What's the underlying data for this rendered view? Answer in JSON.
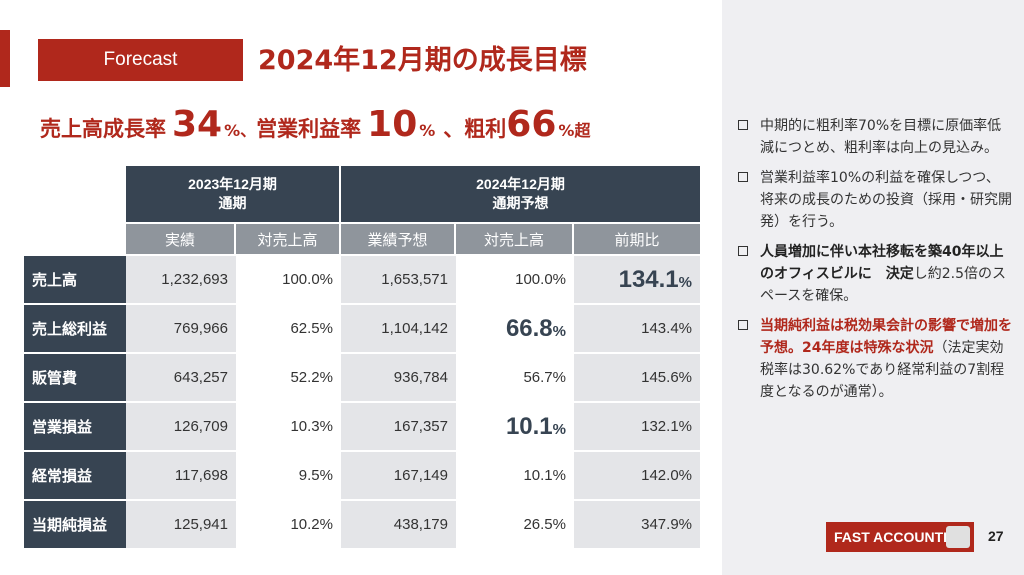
{
  "badge": "Forecast",
  "title": "2024年12月期の成長目標",
  "kpi": {
    "label1": "売上高成長率",
    "value1": "34",
    "unit1": "%、",
    "label2": "営業利益率",
    "value2": "10",
    "unit2": "%",
    "sep": "、",
    "label3": "粗利",
    "value3": "66",
    "unit3": "%超"
  },
  "table": {
    "period1": [
      "2023年12月期",
      "通期"
    ],
    "period2": [
      "2024年12月期",
      "通期予想"
    ],
    "subheaders": [
      "実績",
      "対売上高",
      "業績予想",
      "対売上高",
      "前期比"
    ],
    "rows": [
      {
        "label": "売上高",
        "cells": [
          "1,232,693",
          "100.0%",
          "1,653,571",
          "100.0%",
          "134.1"
        ]
      },
      {
        "label": "売上総利益",
        "cells": [
          "769,966",
          "62.5%",
          "1,104,142",
          "66.8",
          "143.4%"
        ]
      },
      {
        "label": "販管費",
        "cells": [
          "643,257",
          "52.2%",
          "936,784",
          "56.7%",
          "145.6%"
        ]
      },
      {
        "label": "営業損益",
        "cells": [
          "126,709",
          "10.3%",
          "167,357",
          "10.1",
          "132.1%"
        ]
      },
      {
        "label": "経常損益",
        "cells": [
          "117,698",
          "9.5%",
          "167,149",
          "10.1%",
          "142.0%"
        ]
      },
      {
        "label": "当期純損益",
        "cells": [
          "125,941",
          "10.2%",
          "438,179",
          "26.5%",
          "347.9%"
        ]
      }
    ],
    "pct_suffix": "%"
  },
  "bullets": {
    "b1": "中期的に粗利率70%を目標に原価率低減につとめ、粗利率は向上の見込み。",
    "b2": "営業利益率10%の利益を確保しつつ、将来の成長のための投資（採用・研究開発）を行う。",
    "b3_bold": "人員増加に伴い本社移転を築40年以上のオフィスビルに　決定",
    "b3_rest": "し約2.5倍のスペースを確保。",
    "b4_red": "当期純利益は税効果会計の影響で増加を予想。24年度は特殊な状況",
    "b4_rest": "（法定実効税率は30.62%であり経常利益の7割程度となるのが通常）。"
  },
  "footer": {
    "logo_text": "FAST ACCOUNTING",
    "page": "27"
  },
  "colors": {
    "accent": "#b0281c",
    "header_dark": "#374452",
    "header_mid": "#8f959c",
    "panel": "#efeff2"
  }
}
